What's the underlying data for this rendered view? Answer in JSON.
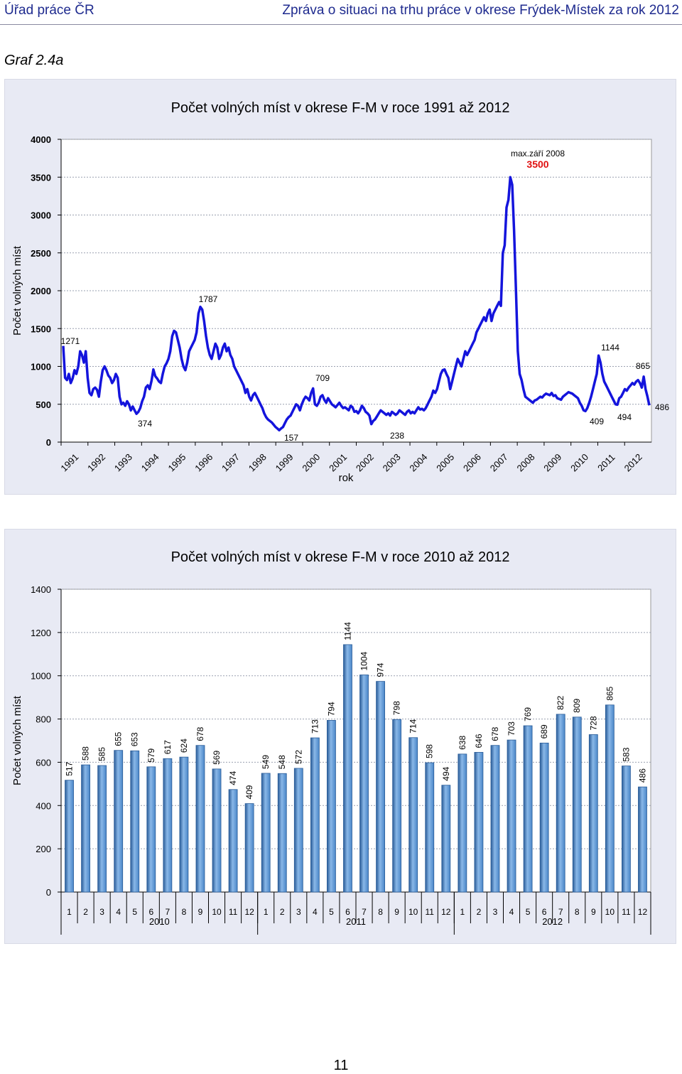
{
  "header": {
    "left": "Úřad práce ČR",
    "right": "Zpráva o situaci na trhu práce v okrese Frýdek-Místek za rok 2012"
  },
  "graf_label": "Graf 2.4a",
  "page_number": "11",
  "colors": {
    "line": "#1414dc",
    "bar": "#4a86c8",
    "bar_dark": "#2a5c98",
    "panel": "#e8eaf4",
    "max_value": "#e01010"
  },
  "chart_data": [
    {
      "type": "line",
      "title": "Počet volných míst v okrese F-M v roce 1991 až 2012",
      "xlabel": "rok",
      "ylabel": "Počet volných míst",
      "ylim": [
        0,
        4000
      ],
      "yticks": [
        0,
        500,
        1000,
        1500,
        2000,
        2500,
        3000,
        3500,
        4000
      ],
      "xtick_labels": [
        "1991",
        "1992",
        "1993",
        "1994",
        "1995",
        "1996",
        "1997",
        "1998",
        "1999",
        "2000",
        "2001",
        "2002",
        "2003",
        "2004",
        "2005",
        "2006",
        "2007",
        "2008",
        "2009",
        "2010",
        "2011",
        "2012"
      ],
      "grid": true,
      "series": [
        {
          "values": [
            1271,
            850,
            820,
            900,
            780,
            840,
            950,
            900,
            1000,
            1200,
            1150,
            1050,
            1200,
            850,
            650,
            620,
            700,
            720,
            690,
            600,
            800,
            950,
            1000,
            950,
            880,
            850,
            780,
            820,
            900,
            850,
            600,
            500,
            520,
            480,
            540,
            500,
            420,
            470,
            420,
            374,
            400,
            450,
            540,
            600,
            720,
            750,
            700,
            810,
            960,
            870,
            840,
            800,
            780,
            900,
            1000,
            1040,
            1100,
            1200,
            1400,
            1470,
            1450,
            1350,
            1250,
            1100,
            1000,
            950,
            1050,
            1200,
            1250,
            1300,
            1350,
            1450,
            1700,
            1787,
            1750,
            1600,
            1400,
            1250,
            1150,
            1100,
            1200,
            1300,
            1250,
            1100,
            1150,
            1250,
            1300,
            1200,
            1250,
            1150,
            1100,
            1000,
            950,
            900,
            850,
            800,
            750,
            650,
            700,
            600,
            550,
            620,
            650,
            600,
            550,
            500,
            450,
            380,
            330,
            300,
            280,
            260,
            230,
            200,
            180,
            157,
            180,
            200,
            250,
            300,
            330,
            350,
            400,
            450,
            500,
            480,
            420,
            500,
            560,
            600,
            580,
            550,
            650,
            709,
            500,
            480,
            520,
            600,
            620,
            560,
            520,
            580,
            540,
            500,
            480,
            460,
            490,
            520,
            480,
            450,
            460,
            440,
            420,
            480,
            460,
            400,
            410,
            380,
            420,
            480,
            450,
            400,
            380,
            350,
            238,
            280,
            300,
            340,
            380,
            420,
            400,
            380,
            360,
            380,
            350,
            400,
            380,
            360,
            380,
            420,
            400,
            380,
            360,
            400,
            420,
            380,
            400,
            380,
            420,
            460,
            430,
            440,
            420,
            450,
            500,
            550,
            600,
            680,
            650,
            700,
            800,
            900,
            950,
            960,
            900,
            850,
            700,
            800,
            900,
            1000,
            1100,
            1050,
            1000,
            1100,
            1200,
            1150,
            1200,
            1250,
            1300,
            1350,
            1450,
            1500,
            1550,
            1600,
            1650,
            1600,
            1700,
            1750,
            1600,
            1700,
            1750,
            1800,
            1850,
            1800,
            2500,
            2600,
            3100,
            3200,
            3500,
            3400,
            2800,
            2000,
            1200,
            900,
            820,
            700,
            600,
            580,
            560,
            540,
            520,
            550,
            560,
            580,
            600,
            590,
            620,
            640,
            630,
            620,
            650,
            609,
            620,
            580,
            570,
            560,
            600,
            620,
            640,
            660,
            650,
            640,
            620,
            600,
            580,
            520,
            480,
            420,
            409,
            450,
            520,
            600,
            700,
            800,
            900,
            1144,
            1050,
            900,
            800,
            750,
            700,
            650,
            600,
            550,
            500,
            494,
            580,
            600,
            650,
            700,
            680,
            720,
            750,
            780,
            760,
            800,
            820,
            780,
            720,
            865,
            700,
            600,
            486
          ]
        }
      ],
      "annotations": [
        {
          "label": "1271",
          "value": 1271
        },
        {
          "label": "374",
          "value": 374
        },
        {
          "label": "1787",
          "value": 1787
        },
        {
          "label": "157",
          "value": 157
        },
        {
          "label": "709",
          "value": 709
        },
        {
          "label": "238",
          "value": 238
        },
        {
          "label": "max.září 2008",
          "value": 3500
        },
        {
          "label": "3500",
          "value": 3500
        },
        {
          "label": "409",
          "value": 409
        },
        {
          "label": "1144",
          "value": 1144
        },
        {
          "label": "494",
          "value": 494
        },
        {
          "label": "865",
          "value": 865
        },
        {
          "label": "486",
          "value": 486
        }
      ]
    },
    {
      "type": "bar",
      "title": "Počet volných míst v okrese F-M v roce 2010 až 2012",
      "ylabel": "Počet volných míst",
      "ylim": [
        0,
        1400
      ],
      "yticks": [
        0,
        200,
        400,
        600,
        800,
        1000,
        1200,
        1400
      ],
      "grid": true,
      "categories": [
        "1",
        "2",
        "3",
        "4",
        "5",
        "6",
        "7",
        "8",
        "9",
        "10",
        "11",
        "12",
        "1",
        "2",
        "3",
        "4",
        "5",
        "6",
        "7",
        "8",
        "9",
        "10",
        "11",
        "12",
        "1",
        "2",
        "3",
        "4",
        "5",
        "6",
        "7",
        "8",
        "9",
        "10",
        "11",
        "12"
      ],
      "groups": [
        "2010",
        "2011",
        "2012"
      ],
      "values": [
        517,
        588,
        585,
        655,
        653,
        579,
        617,
        624,
        678,
        569,
        474,
        409,
        549,
        548,
        572,
        713,
        794,
        1144,
        1004,
        974,
        798,
        714,
        598,
        494,
        638,
        646,
        678,
        703,
        769,
        689,
        822,
        809,
        728,
        865,
        583,
        486
      ]
    }
  ]
}
